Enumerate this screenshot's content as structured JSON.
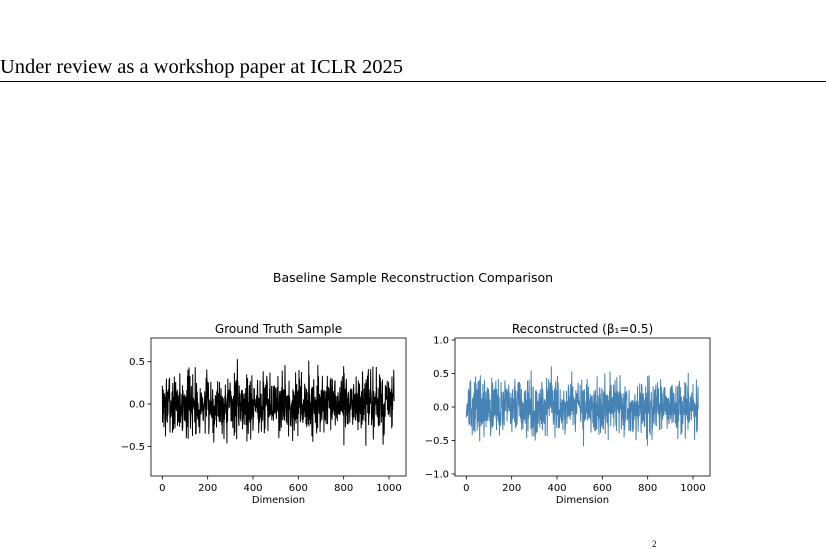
{
  "header": {
    "text": "Under review as a workshop paper at ICLR 2025"
  },
  "figure": {
    "title": "Baseline Sample Reconstruction Comparison"
  },
  "footer_mark": "2",
  "chart_data": [
    {
      "type": "line",
      "title": "Ground Truth Sample",
      "xlabel": "Dimension",
      "ylabel": "",
      "xlim": [
        -50,
        1075
      ],
      "ylim": [
        -0.85,
        0.78
      ],
      "xticks": [
        0,
        200,
        400,
        600,
        800,
        1000
      ],
      "xtick_labels": [
        "0",
        "200",
        "400",
        "600",
        "800",
        "1000"
      ],
      "yticks": [
        -0.5,
        0.0,
        0.5
      ],
      "ytick_labels": [
        "−0.5",
        "0.0",
        "0.5"
      ],
      "grid": false,
      "color": "#000000",
      "n_points": 1024,
      "seed": 7,
      "noise_scale": 0.26,
      "series_max": 0.75,
      "series_min": -0.85
    },
    {
      "type": "line",
      "title": "Reconstructed (β₁=0.5)",
      "xlabel": "Dimension",
      "ylabel": "",
      "xlim": [
        -50,
        1075
      ],
      "ylim": [
        -1.03,
        1.03
      ],
      "xticks": [
        0,
        200,
        400,
        600,
        800,
        1000
      ],
      "xtick_labels": [
        "0",
        "200",
        "400",
        "600",
        "800",
        "1000"
      ],
      "yticks": [
        -1.0,
        -0.5,
        0.0,
        0.5,
        1.0
      ],
      "ytick_labels": [
        "−1.0",
        "−0.5",
        "0.0",
        "0.5",
        "1.0"
      ],
      "grid": false,
      "color": "#4682b4",
      "n_points": 1024,
      "seed": 13,
      "noise_scale": 0.3,
      "series_max": 0.92,
      "series_min": -0.97
    }
  ]
}
